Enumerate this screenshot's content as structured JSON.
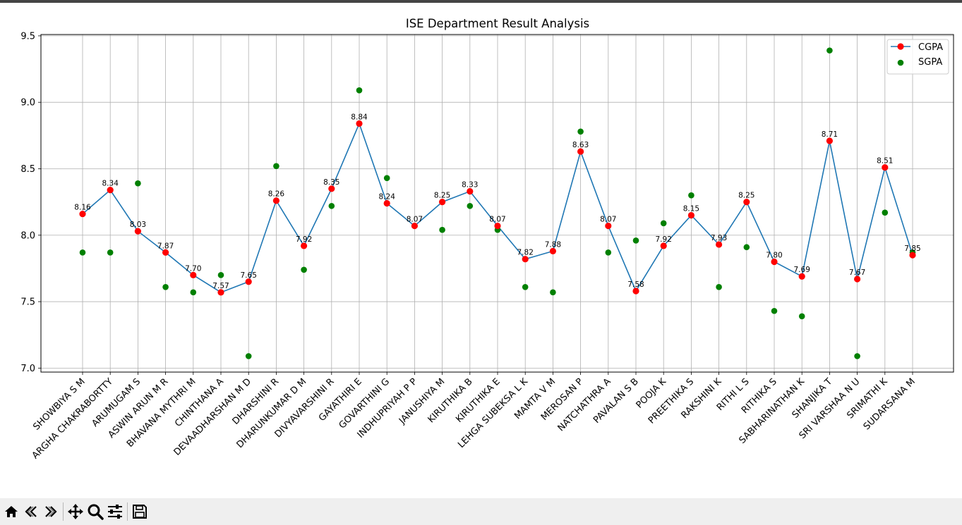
{
  "chart_data": {
    "type": "line",
    "title": "ISE Department Result Analysis",
    "xlabel": "",
    "ylabel": "",
    "ylim": [
      6.97,
      9.51
    ],
    "yticks": [
      "7.0",
      "7.5",
      "8.0",
      "8.5",
      "9.0",
      "9.5"
    ],
    "grid": true,
    "legend_position": "top-right",
    "categories": [
      "SHOWBIYA S M",
      "ARGHA CHAKRABORTTY",
      "ARUMUGAM S",
      "ASWIN ARUN M R",
      "BHAVANA MYTHRI M",
      "CHINTHANA A",
      "DEVAADHARSHAN M D",
      "DHARSHINI R",
      "DHARUNKUMAR D M",
      "DIVYAVARSHINI R",
      "GAYATHIRI E",
      "GOVARTHINI G",
      "INDHUPRIYAH P P",
      "JANUSHIYA M",
      "KIRUTHIKA B",
      "KIRUTHIKA E",
      "LEHGA SUBEKSA L K",
      "MAMTA V M",
      "MEROSAN P",
      "NATCHATHRA A",
      "PAVALAN S B",
      "POOJA K",
      "PREETHIKA S",
      "RAKSHINI K",
      "RITHI L S",
      "RITHIKA S",
      "SABHARINATHAN K",
      "SHANJIKA T",
      "SRI VARSHAA N U",
      "SRIMATHI K",
      "SUDARSANA M"
    ],
    "series": [
      {
        "name": "CGPA",
        "kind": "line-with-markers",
        "line_color": "#1f77b4",
        "marker_color": "#ff0000",
        "values": [
          8.16,
          8.34,
          8.03,
          7.87,
          7.7,
          7.57,
          7.65,
          8.26,
          7.92,
          8.35,
          8.84,
          8.24,
          8.07,
          8.25,
          8.33,
          8.07,
          7.82,
          7.88,
          8.63,
          8.07,
          7.58,
          7.92,
          8.15,
          7.93,
          8.25,
          7.8,
          7.69,
          8.71,
          7.67,
          8.51,
          7.85
        ],
        "labels": [
          "8.16",
          "8.34",
          "8.03",
          "7.87",
          "7.70",
          "7.57",
          "7.65",
          "8.26",
          "7.92",
          "8.35",
          "8.84",
          "8.24",
          "8.07",
          "8.25",
          "8.33",
          "8.07",
          "7.82",
          "7.88",
          "8.63",
          "8.07",
          "7.58",
          "7.92",
          "8.15",
          "7.93",
          "8.25",
          "7.80",
          "7.69",
          "8.71",
          "7.67",
          "8.51",
          "7.85"
        ]
      },
      {
        "name": "SGPA",
        "kind": "scatter",
        "marker_color": "#008000",
        "values": [
          7.87,
          7.87,
          8.39,
          7.61,
          7.57,
          7.7,
          7.09,
          8.52,
          7.74,
          8.22,
          9.09,
          8.43,
          8.07,
          8.04,
          8.22,
          8.04,
          7.61,
          7.57,
          8.78,
          7.87,
          7.96,
          8.09,
          8.3,
          7.61,
          7.91,
          7.43,
          7.39,
          9.39,
          7.09,
          8.17,
          7.87
        ]
      }
    ]
  },
  "toolbar": {
    "buttons": [
      {
        "name": "home-icon"
      },
      {
        "name": "back-icon"
      },
      {
        "name": "forward-icon"
      },
      {
        "name": "pan-icon"
      },
      {
        "name": "zoom-icon"
      },
      {
        "name": "configure-subplots-icon"
      },
      {
        "name": "save-icon"
      }
    ]
  }
}
